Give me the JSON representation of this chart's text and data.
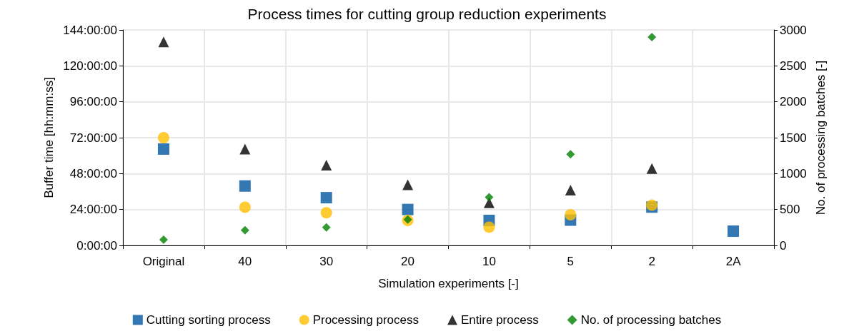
{
  "chart_data": {
    "type": "scatter",
    "title": "Process times for cutting group reduction experiments",
    "xlabel": "Simulation experiments [-]",
    "ylabel": "Buffer time [hh:mm:ss]",
    "y2label": "No. of processing batches [-]",
    "categories": [
      "Original",
      "40",
      "30",
      "20",
      "10",
      "5",
      "2",
      "2A"
    ],
    "series": [
      {
        "name": "Cutting sorting process",
        "color": "#0055a0",
        "marker": "square",
        "values": [
          64.4,
          39.7,
          31.9,
          24.0,
          16.7,
          16.9,
          25.6,
          9.5
        ]
      },
      {
        "name": "Processing process",
        "color": "#ffc000",
        "marker": "circle",
        "values": [
          72.0,
          25.5,
          21.8,
          16.7,
          12.2,
          20.5,
          26.9,
          null
        ]
      },
      {
        "name": "Entire process",
        "color": "#000000",
        "marker": "triangle",
        "values": [
          136.0,
          64.4,
          53.6,
          40.5,
          28.5,
          37.0,
          51.4,
          null
        ]
      },
      {
        "name": "No. of processing batches",
        "color": "#008000",
        "marker": "diamond",
        "axis": "y2",
        "values": [
          80,
          210,
          250,
          360,
          670,
          1270,
          2900,
          null
        ]
      }
    ],
    "ylim": [
      0,
      144
    ],
    "yticks": [
      {
        "value": 0,
        "label": "0:00:00"
      },
      {
        "value": 24,
        "label": "24:00:00"
      },
      {
        "value": 48,
        "label": "48:00:00"
      },
      {
        "value": 72,
        "label": "72:00:00"
      },
      {
        "value": 96,
        "label": "96:00:00"
      },
      {
        "value": 120,
        "label": "120:00:00"
      },
      {
        "value": 144,
        "label": "144:00:00"
      }
    ],
    "y2lim": [
      0,
      3000
    ],
    "y2ticks": [
      0,
      500,
      1000,
      1500,
      2000,
      2500,
      3000
    ],
    "grid": true,
    "legend": "bottom"
  }
}
